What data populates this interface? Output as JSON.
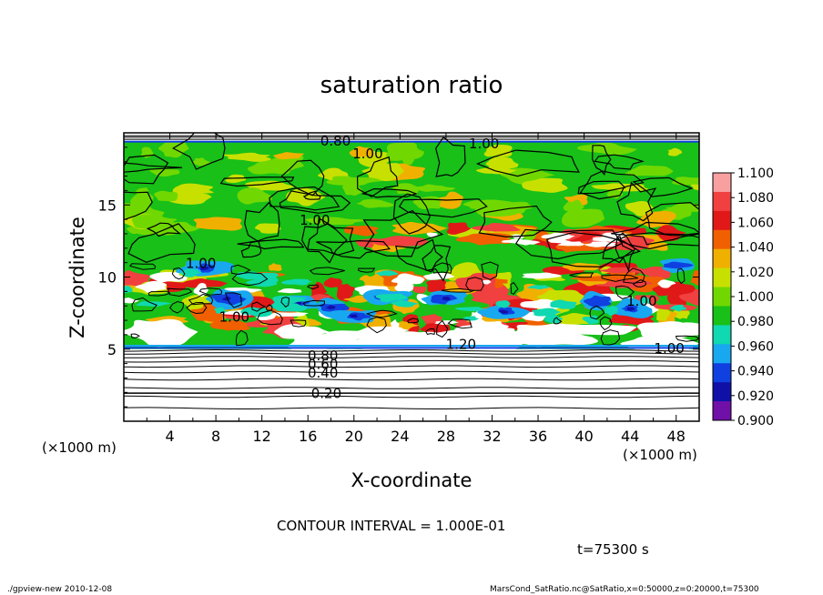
{
  "chart_data": {
    "type": "heatmap",
    "title": "saturation ratio",
    "xlabel": "X-coordinate",
    "ylabel": "Z-coordinate",
    "x_unit": "(×1000 m)",
    "y_unit": "(×1000 m)",
    "xlim": [
      0,
      50
    ],
    "ylim": [
      0,
      20
    ],
    "x_ticks": [
      4,
      8,
      12,
      16,
      20,
      24,
      28,
      32,
      36,
      40,
      44,
      48
    ],
    "y_ticks": [
      5,
      10,
      15
    ],
    "colorbar": {
      "levels": [
        "1.100",
        "1.080",
        "1.060",
        "1.040",
        "1.020",
        "1.000",
        "0.980",
        "0.960",
        "0.940",
        "0.920",
        "0.900"
      ],
      "colors": [
        "#f8a0a0",
        "#f04040",
        "#e01818",
        "#f06000",
        "#f0b000",
        "#c8e000",
        "#70d800",
        "#18c018",
        "#10d8b0",
        "#18a8f0",
        "#1040e0",
        "#1010a8",
        "#7010a8"
      ]
    },
    "contour_labels": [
      {
        "text": "0.80",
        "x": 18.4,
        "z": 19.5
      },
      {
        "text": "1.00",
        "x": 31.3,
        "z": 19.3
      },
      {
        "text": "1.00",
        "x": 21.2,
        "z": 18.6
      },
      {
        "text": "1.00",
        "x": 16.6,
        "z": 14.0
      },
      {
        "text": "1.00",
        "x": 6.7,
        "z": 11.0
      },
      {
        "text": "1.00",
        "x": 45.0,
        "z": 8.4
      },
      {
        "text": "1.00",
        "x": 9.6,
        "z": 7.3
      },
      {
        "text": "1.20",
        "x": 29.3,
        "z": 5.4
      },
      {
        "text": "1.00",
        "x": 47.4,
        "z": 5.1
      },
      {
        "text": "0.80",
        "x": 17.3,
        "z": 4.6
      },
      {
        "text": "0.60",
        "x": 17.3,
        "z": 4.0
      },
      {
        "text": "0.40",
        "x": 17.3,
        "z": 3.4
      },
      {
        "text": "0.20",
        "x": 17.6,
        "z": 2.0
      }
    ]
  },
  "contour_interval_text": "CONTOUR INTERVAL = 1.000E-01",
  "time_text": "t=75300 s",
  "footer_left": "./gpview-new  2010-12-08",
  "footer_right": "MarsCond_SatRatio.nc@SatRatio,x=0:50000,z=0:20000,t=75300"
}
